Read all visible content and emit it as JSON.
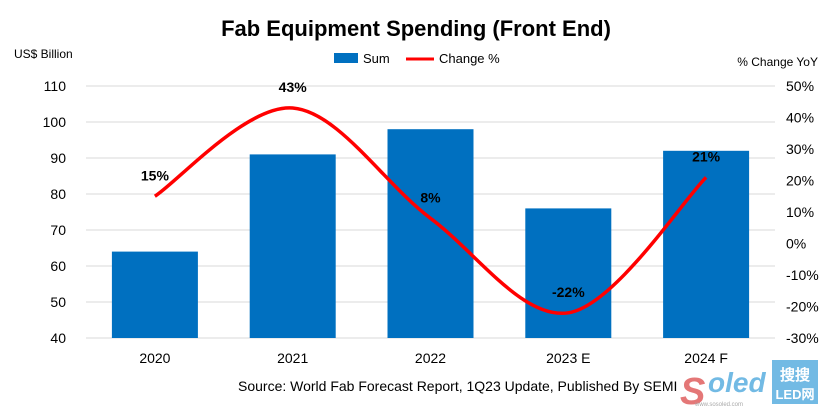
{
  "chart_data": {
    "type": "bar+line",
    "title": "Fab Equipment Spending (Front End)",
    "ylabel_left": "US$ Billion",
    "ylabel_right": "% Change YoY",
    "categories": [
      "2020",
      "2021",
      "2022",
      "2023 E",
      "2024 F"
    ],
    "series": [
      {
        "name": "Sum",
        "type": "bar",
        "axis": "left",
        "values": [
          64,
          91,
          98,
          76,
          92
        ],
        "color": "#0070C0"
      },
      {
        "name": "Change %",
        "type": "line",
        "axis": "right",
        "values": [
          15,
          43,
          8,
          -22,
          21
        ],
        "labels": [
          "15%",
          "43%",
          "8%",
          "-22%",
          "21%"
        ],
        "color": "#FF0000"
      }
    ],
    "ylim_left": [
      40,
      110
    ],
    "yticks_left": [
      "40",
      "50",
      "60",
      "70",
      "80",
      "90",
      "100",
      "110"
    ],
    "ylim_right": [
      -30,
      50
    ],
    "yticks_right": [
      "-30%",
      "-20%",
      "-10%",
      "0%",
      "10%",
      "20%",
      "30%",
      "40%",
      "50%"
    ],
    "grid": true,
    "legend": "top-center",
    "source": "Source: World Fab Forecast Report, 1Q23 Update, Published By SEMI"
  },
  "watermark": {
    "logo": "Soled",
    "cn": "搜搜",
    "led": "LED网",
    "url": "www.sosoled.com"
  }
}
